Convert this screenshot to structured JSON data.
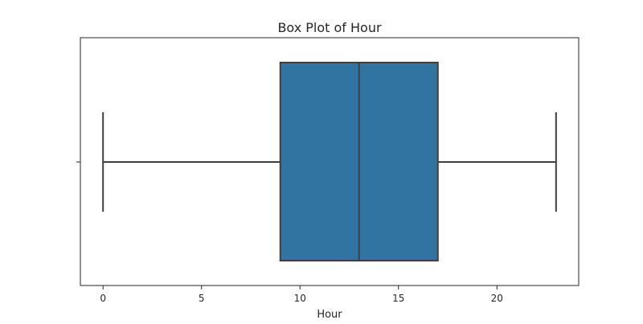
{
  "chart_data": {
    "type": "box",
    "title": "Box Plot of Hour",
    "xlabel": "Hour",
    "ylabel": "",
    "orientation": "horizontal",
    "xlim": [
      -1.15,
      24.15
    ],
    "xticks": [
      0,
      5,
      10,
      15,
      20
    ],
    "xtick_labels": [
      "0",
      "5",
      "10",
      "15",
      "20"
    ],
    "grid": false,
    "box": {
      "whisker_low": 0,
      "q1": 9,
      "median": 13,
      "q3": 17,
      "whisker_high": 23
    },
    "colors": {
      "box_fill": "#3274a1",
      "line": "#3f3f3f",
      "axes": "#262626"
    }
  }
}
